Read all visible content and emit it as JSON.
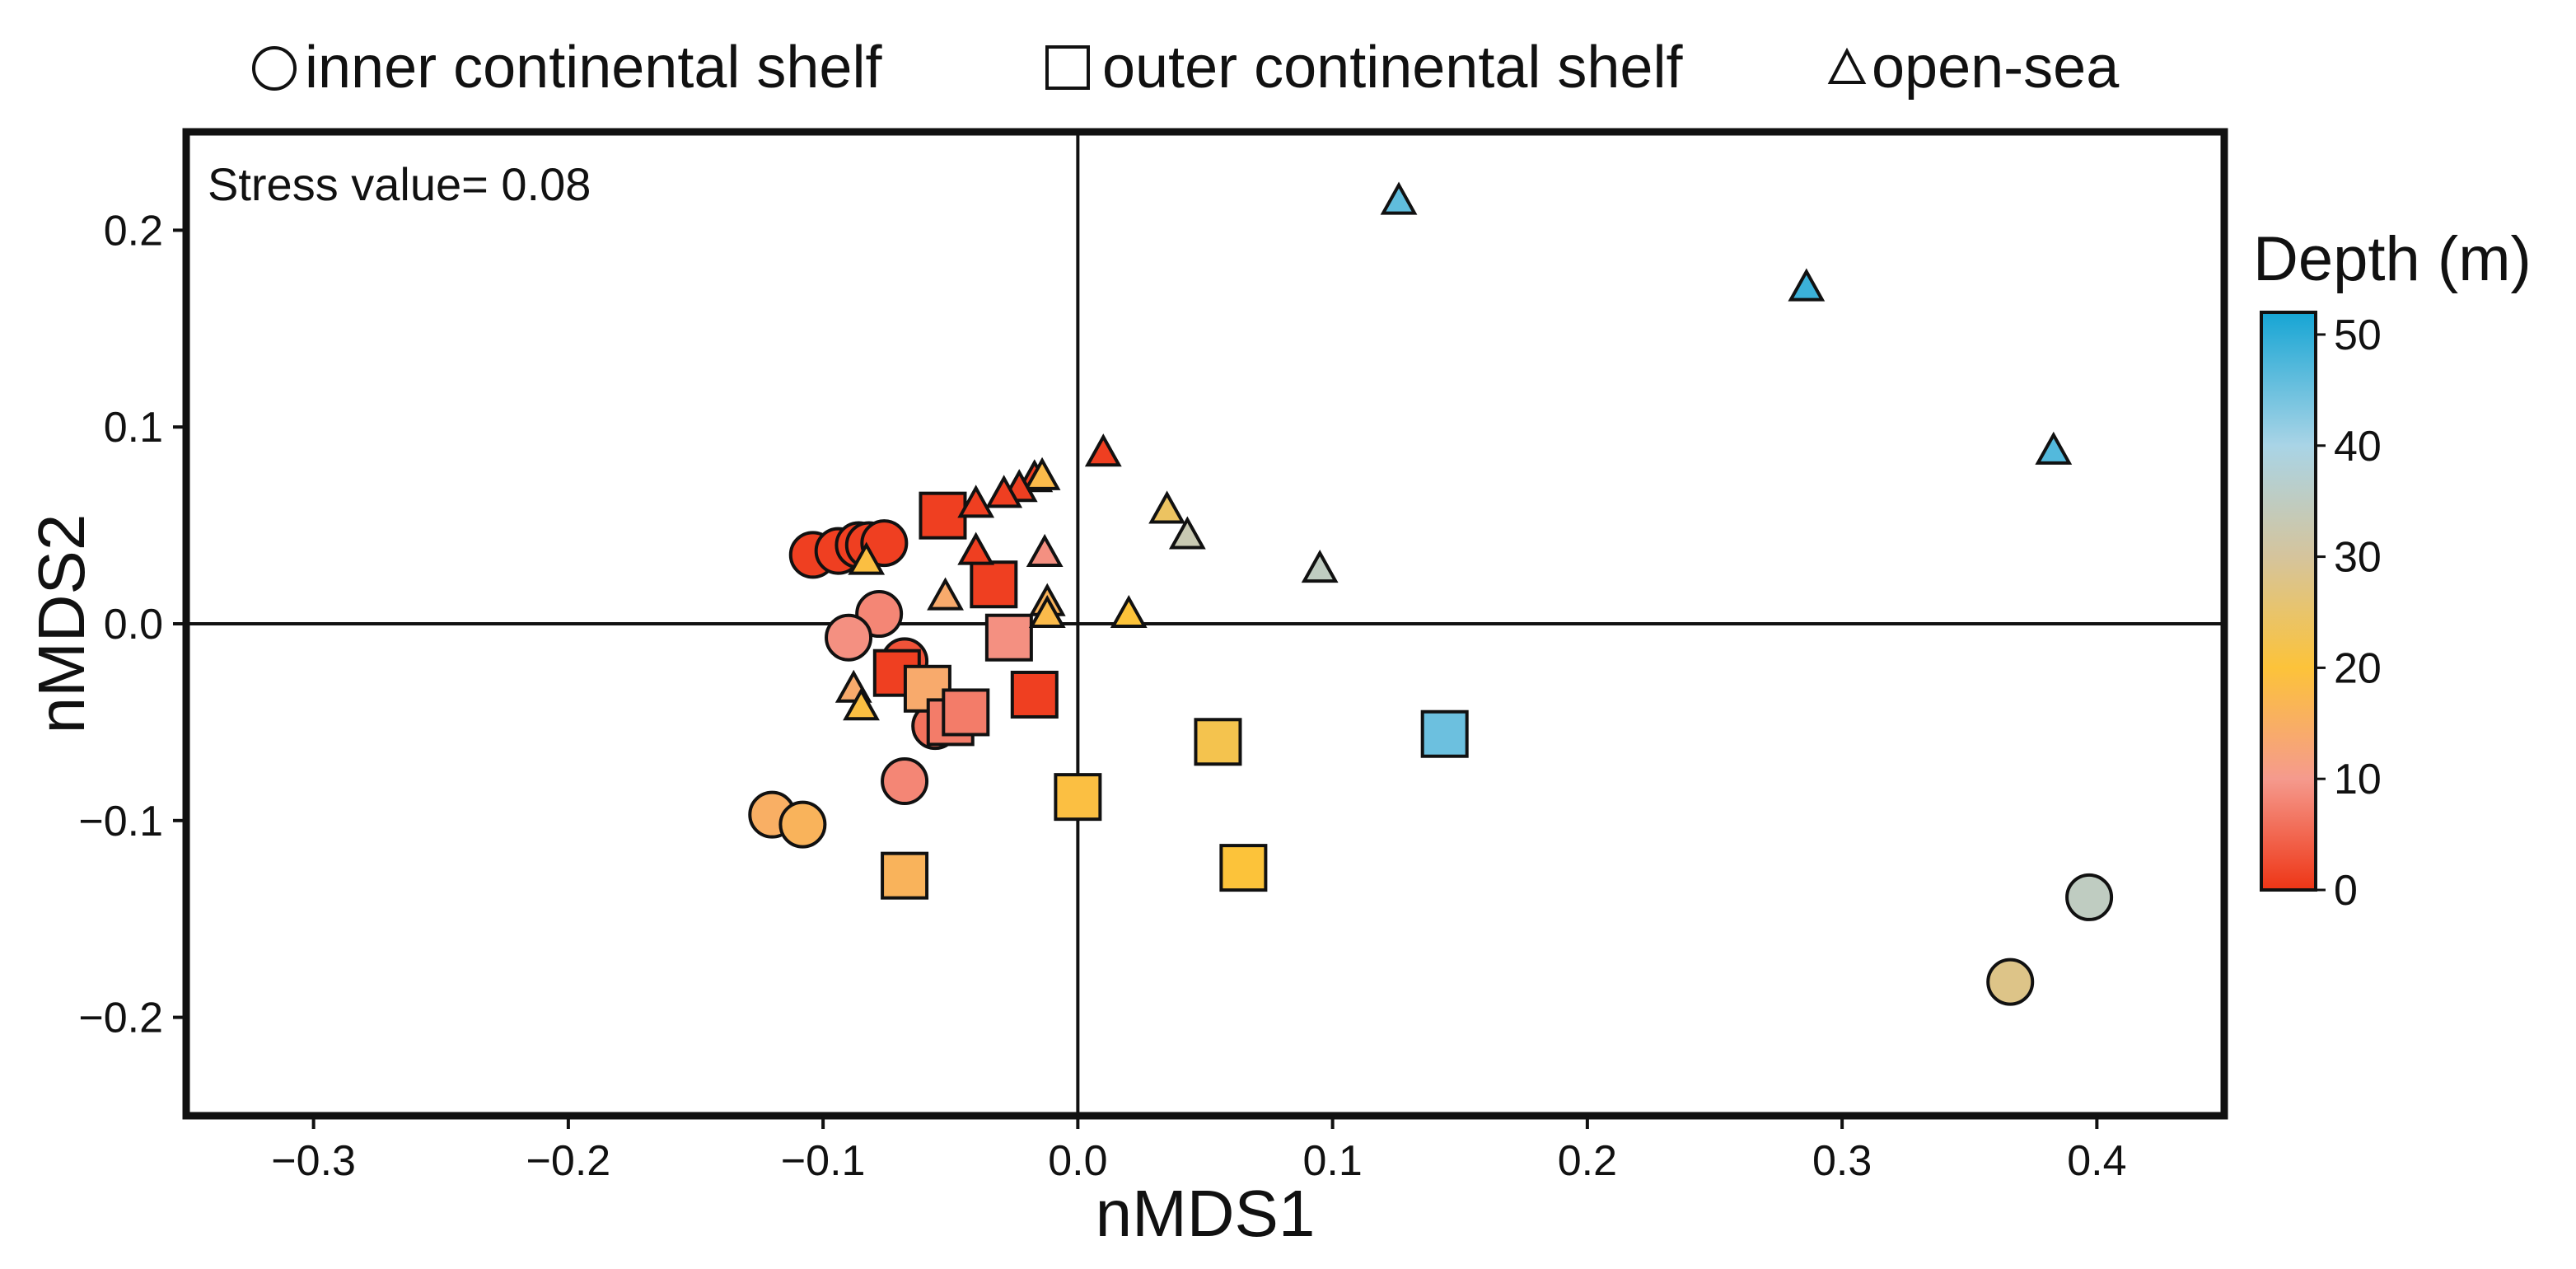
{
  "chart_data": {
    "type": "scatter",
    "xlabel": "nMDS1",
    "ylabel": "nMDS2",
    "xlim": [
      -0.35,
      0.45
    ],
    "ylim": [
      -0.25,
      0.25
    ],
    "x_ticks": [
      -0.3,
      -0.2,
      -0.1,
      0.0,
      0.1,
      0.2,
      0.3,
      0.4
    ],
    "x_tick_labels": [
      "−0.3",
      "−0.2",
      "−0.1",
      "0.0",
      "0.1",
      "0.2",
      "0.3",
      "0.4"
    ],
    "y_ticks": [
      0.2,
      0.1,
      0.0,
      -0.1,
      -0.2
    ],
    "y_tick_labels": [
      "0.2",
      "0.1",
      "0.0",
      "−0.1",
      "−0.2"
    ],
    "annotation": "Stress value= 0.08",
    "grid": false,
    "reference_lines": {
      "x": 0.0,
      "y": 0.0
    },
    "legend": {
      "placement": "top",
      "items": [
        {
          "marker": "circle",
          "label": "inner continental shelf"
        },
        {
          "marker": "square",
          "label": "outer continental shelf"
        },
        {
          "marker": "triangle",
          "label": "open-sea"
        }
      ]
    },
    "colorbar": {
      "title": "Depth (m)",
      "range": [
        0,
        52
      ],
      "ticks": [
        0,
        10,
        20,
        30,
        40,
        50
      ],
      "tick_labels": [
        "0",
        "10",
        "20",
        "30",
        "40",
        "50"
      ],
      "stops": [
        {
          "value": 0,
          "color": "#ee3515"
        },
        {
          "value": 10,
          "color": "#f59a8d"
        },
        {
          "value": 20,
          "color": "#fcc33a"
        },
        {
          "value": 30,
          "color": "#d5c49c"
        },
        {
          "value": 40,
          "color": "#a9d4e6"
        },
        {
          "value": 52,
          "color": "#16a5d4"
        }
      ]
    },
    "series": [
      {
        "name": "inner continental shelf",
        "marker": "circle",
        "points": [
          {
            "x": -0.104,
            "y": 0.035,
            "depth": 1
          },
          {
            "x": -0.094,
            "y": 0.037,
            "depth": 1
          },
          {
            "x": -0.086,
            "y": 0.04,
            "depth": 1
          },
          {
            "x": -0.082,
            "y": 0.04,
            "depth": 1
          },
          {
            "x": -0.076,
            "y": 0.041,
            "depth": 1
          },
          {
            "x": -0.078,
            "y": 0.005,
            "depth": 8
          },
          {
            "x": -0.09,
            "y": -0.007,
            "depth": 9
          },
          {
            "x": -0.068,
            "y": -0.019,
            "depth": 3
          },
          {
            "x": -0.056,
            "y": -0.052,
            "depth": 6
          },
          {
            "x": -0.068,
            "y": -0.08,
            "depth": 8
          },
          {
            "x": -0.12,
            "y": -0.097,
            "depth": 15
          },
          {
            "x": -0.108,
            "y": -0.102,
            "depth": 16
          },
          {
            "x": 0.366,
            "y": -0.182,
            "depth": 28
          },
          {
            "x": 0.397,
            "y": -0.139,
            "depth": 35
          }
        ]
      },
      {
        "name": "outer continental shelf",
        "marker": "square",
        "points": [
          {
            "x": -0.053,
            "y": 0.055,
            "depth": 1
          },
          {
            "x": -0.033,
            "y": 0.02,
            "depth": 1
          },
          {
            "x": -0.027,
            "y": -0.007,
            "depth": 9
          },
          {
            "x": -0.071,
            "y": -0.025,
            "depth": 1
          },
          {
            "x": -0.059,
            "y": -0.033,
            "depth": 14
          },
          {
            "x": -0.05,
            "y": -0.05,
            "depth": 7
          },
          {
            "x": -0.044,
            "y": -0.045,
            "depth": 7
          },
          {
            "x": -0.017,
            "y": -0.036,
            "depth": 1
          },
          {
            "x": 0.0,
            "y": -0.088,
            "depth": 19
          },
          {
            "x": -0.068,
            "y": -0.128,
            "depth": 16
          },
          {
            "x": 0.055,
            "y": -0.06,
            "depth": 22
          },
          {
            "x": 0.065,
            "y": -0.124,
            "depth": 20
          },
          {
            "x": 0.144,
            "y": -0.056,
            "depth": 45
          }
        ]
      },
      {
        "name": "open-sea",
        "marker": "triangle",
        "points": [
          {
            "x": 0.126,
            "y": 0.215,
            "depth": 46
          },
          {
            "x": 0.286,
            "y": 0.171,
            "depth": 49
          },
          {
            "x": 0.383,
            "y": 0.088,
            "depth": 47
          },
          {
            "x": 0.01,
            "y": 0.087,
            "depth": 1
          },
          {
            "x": -0.017,
            "y": 0.074,
            "depth": 1
          },
          {
            "x": -0.014,
            "y": 0.075,
            "depth": 18
          },
          {
            "x": -0.023,
            "y": 0.069,
            "depth": 1
          },
          {
            "x": -0.029,
            "y": 0.066,
            "depth": 1
          },
          {
            "x": -0.04,
            "y": 0.061,
            "depth": 1
          },
          {
            "x": -0.04,
            "y": 0.037,
            "depth": 1
          },
          {
            "x": -0.013,
            "y": 0.036,
            "depth": 9
          },
          {
            "x": -0.083,
            "y": 0.032,
            "depth": 19
          },
          {
            "x": -0.052,
            "y": 0.014,
            "depth": 14
          },
          {
            "x": -0.012,
            "y": 0.011,
            "depth": 16
          },
          {
            "x": -0.012,
            "y": 0.005,
            "depth": 18
          },
          {
            "x": 0.02,
            "y": 0.005,
            "depth": 20
          },
          {
            "x": 0.035,
            "y": 0.058,
            "depth": 24
          },
          {
            "x": 0.043,
            "y": 0.045,
            "depth": 33
          },
          {
            "x": 0.095,
            "y": 0.028,
            "depth": 35
          },
          {
            "x": -0.088,
            "y": -0.033,
            "depth": 14
          },
          {
            "x": -0.085,
            "y": -0.042,
            "depth": 19
          }
        ]
      }
    ]
  }
}
